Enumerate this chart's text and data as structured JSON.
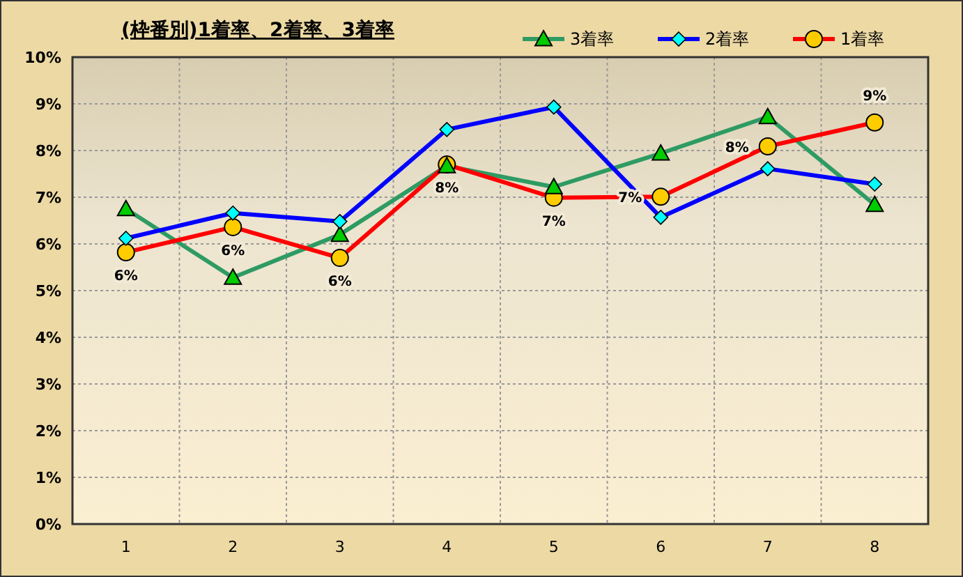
{
  "chart_data": {
    "type": "line",
    "title": "(枠番別)1着率、2着率、3着率",
    "categories": [
      "1",
      "2",
      "3",
      "4",
      "5",
      "6",
      "7",
      "8"
    ],
    "series": [
      {
        "name": "3着率",
        "color": "#2e9b63",
        "marker": "triangle",
        "values": [
          6.75,
          5.28,
          6.2,
          7.67,
          7.22,
          7.94,
          8.72,
          6.84
        ]
      },
      {
        "name": "2着率",
        "color": "#0000ff",
        "marker": "diamond",
        "values": [
          6.12,
          6.66,
          6.48,
          8.45,
          8.93,
          6.57,
          7.61,
          7.28
        ]
      },
      {
        "name": "1着率",
        "color": "#ff0000",
        "marker": "circle",
        "values": [
          5.82,
          6.36,
          5.7,
          7.7,
          6.99,
          7.01,
          8.09,
          8.6
        ],
        "value_labels": [
          "6%",
          "6%",
          "6%",
          "8%",
          "7%",
          "7%",
          "8%",
          "9%"
        ]
      }
    ],
    "ylim": [
      0,
      10
    ],
    "yticks": [
      {
        "value": 0,
        "label": "0%"
      },
      {
        "value": 1,
        "label": "1%"
      },
      {
        "value": 2,
        "label": "2%"
      },
      {
        "value": 3,
        "label": "3%"
      },
      {
        "value": 4,
        "label": "4%"
      },
      {
        "value": 5,
        "label": "5%"
      },
      {
        "value": 6,
        "label": "6%"
      },
      {
        "value": 7,
        "label": "7%"
      },
      {
        "value": 8,
        "label": "8%"
      },
      {
        "value": 9,
        "label": "9%"
      },
      {
        "value": 10,
        "label": "10%"
      }
    ],
    "grid": true,
    "legend": "top right",
    "line_style": "solid"
  }
}
